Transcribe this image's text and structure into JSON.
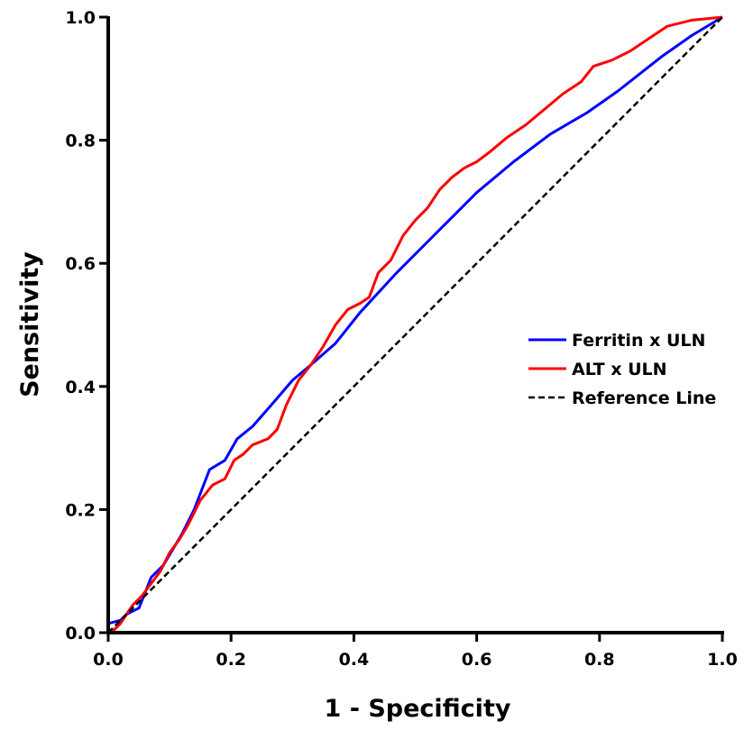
{
  "chart_data": {
    "type": "line",
    "xlabel": "1 - Specificity",
    "ylabel": "Sensitivity",
    "xlim": [
      0,
      1
    ],
    "ylim": [
      0,
      1
    ],
    "xticks": [
      "0.0",
      "0.2",
      "0.4",
      "0.6",
      "0.8",
      "1.0"
    ],
    "yticks": [
      "0.0",
      "0.2",
      "0.4",
      "0.6",
      "0.8",
      "1.0"
    ],
    "grid": false,
    "legend_position": "right",
    "series": [
      {
        "name": "Ferritin x ULN",
        "color": "#0000ff",
        "style": "solid",
        "points": [
          [
            0,
            0
          ],
          [
            0,
            0.015
          ],
          [
            0.02,
            0.02
          ],
          [
            0.03,
            0.03
          ],
          [
            0.05,
            0.04
          ],
          [
            0.07,
            0.09
          ],
          [
            0.09,
            0.11
          ],
          [
            0.12,
            0.16
          ],
          [
            0.14,
            0.2
          ],
          [
            0.165,
            0.265
          ],
          [
            0.19,
            0.28
          ],
          [
            0.21,
            0.315
          ],
          [
            0.235,
            0.335
          ],
          [
            0.27,
            0.375
          ],
          [
            0.3,
            0.41
          ],
          [
            0.33,
            0.435
          ],
          [
            0.37,
            0.47
          ],
          [
            0.41,
            0.52
          ],
          [
            0.47,
            0.585
          ],
          [
            0.53,
            0.645
          ],
          [
            0.6,
            0.715
          ],
          [
            0.66,
            0.765
          ],
          [
            0.72,
            0.81
          ],
          [
            0.78,
            0.845
          ],
          [
            0.83,
            0.88
          ],
          [
            0.9,
            0.935
          ],
          [
            0.95,
            0.97
          ],
          [
            1.0,
            1.0
          ]
        ]
      },
      {
        "name": "ALT x ULN",
        "color": "#ff0000",
        "style": "solid",
        "points": [
          [
            0,
            0
          ],
          [
            0.01,
            0.005
          ],
          [
            0.02,
            0.015
          ],
          [
            0.03,
            0.03
          ],
          [
            0.04,
            0.045
          ],
          [
            0.055,
            0.06
          ],
          [
            0.07,
            0.08
          ],
          [
            0.085,
            0.1
          ],
          [
            0.1,
            0.13
          ],
          [
            0.115,
            0.15
          ],
          [
            0.13,
            0.175
          ],
          [
            0.15,
            0.215
          ],
          [
            0.17,
            0.24
          ],
          [
            0.19,
            0.25
          ],
          [
            0.205,
            0.28
          ],
          [
            0.22,
            0.29
          ],
          [
            0.235,
            0.305
          ],
          [
            0.26,
            0.315
          ],
          [
            0.275,
            0.33
          ],
          [
            0.29,
            0.37
          ],
          [
            0.31,
            0.41
          ],
          [
            0.33,
            0.435
          ],
          [
            0.35,
            0.465
          ],
          [
            0.37,
            0.5
          ],
          [
            0.39,
            0.525
          ],
          [
            0.41,
            0.535
          ],
          [
            0.425,
            0.545
          ],
          [
            0.44,
            0.585
          ],
          [
            0.46,
            0.605
          ],
          [
            0.48,
            0.645
          ],
          [
            0.5,
            0.67
          ],
          [
            0.52,
            0.69
          ],
          [
            0.54,
            0.72
          ],
          [
            0.56,
            0.74
          ],
          [
            0.58,
            0.755
          ],
          [
            0.6,
            0.765
          ],
          [
            0.62,
            0.78
          ],
          [
            0.65,
            0.805
          ],
          [
            0.68,
            0.825
          ],
          [
            0.71,
            0.85
          ],
          [
            0.74,
            0.875
          ],
          [
            0.77,
            0.895
          ],
          [
            0.79,
            0.92
          ],
          [
            0.82,
            0.93
          ],
          [
            0.85,
            0.945
          ],
          [
            0.88,
            0.965
          ],
          [
            0.91,
            0.985
          ],
          [
            0.95,
            0.995
          ],
          [
            0.98,
            0.998
          ],
          [
            1.0,
            1.0
          ]
        ]
      },
      {
        "name": "Reference Line",
        "color": "#000000",
        "style": "dashed",
        "points": [
          [
            0,
            0
          ],
          [
            1,
            1
          ]
        ]
      }
    ]
  }
}
